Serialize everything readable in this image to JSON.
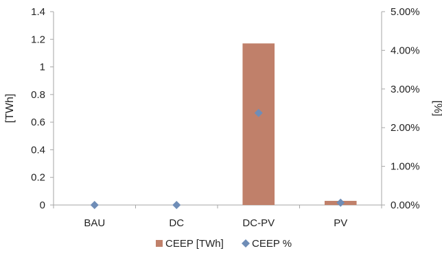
{
  "chart_data": {
    "type": "bar",
    "categories": [
      "BAU",
      "DC",
      "DC-PV",
      "PV"
    ],
    "series": [
      {
        "name": "CEEP [TWh]",
        "kind": "bar",
        "axis": "left",
        "color": "#C0806A",
        "values": [
          0,
          0,
          1.17,
          0.03
        ]
      },
      {
        "name": "CEEP %",
        "kind": "scatter",
        "axis": "right",
        "color": "#6F8DB7",
        "marker": "diamond",
        "values": [
          0.0,
          0.0,
          0.0238,
          0.0006
        ]
      }
    ],
    "y_left": {
      "label": "[TWh]",
      "min": 0,
      "max": 1.4,
      "ticks": [
        "0",
        "0.2",
        "0.4",
        "0.6",
        "0.8",
        "1",
        "1.2",
        "1.4"
      ]
    },
    "y_right": {
      "label": "[%]",
      "min": 0,
      "max": 0.05,
      "ticks": [
        "0.00%",
        "1.00%",
        "2.00%",
        "3.00%",
        "4.00%",
        "5.00%"
      ]
    },
    "grid": false,
    "legend_position": "bottom"
  }
}
